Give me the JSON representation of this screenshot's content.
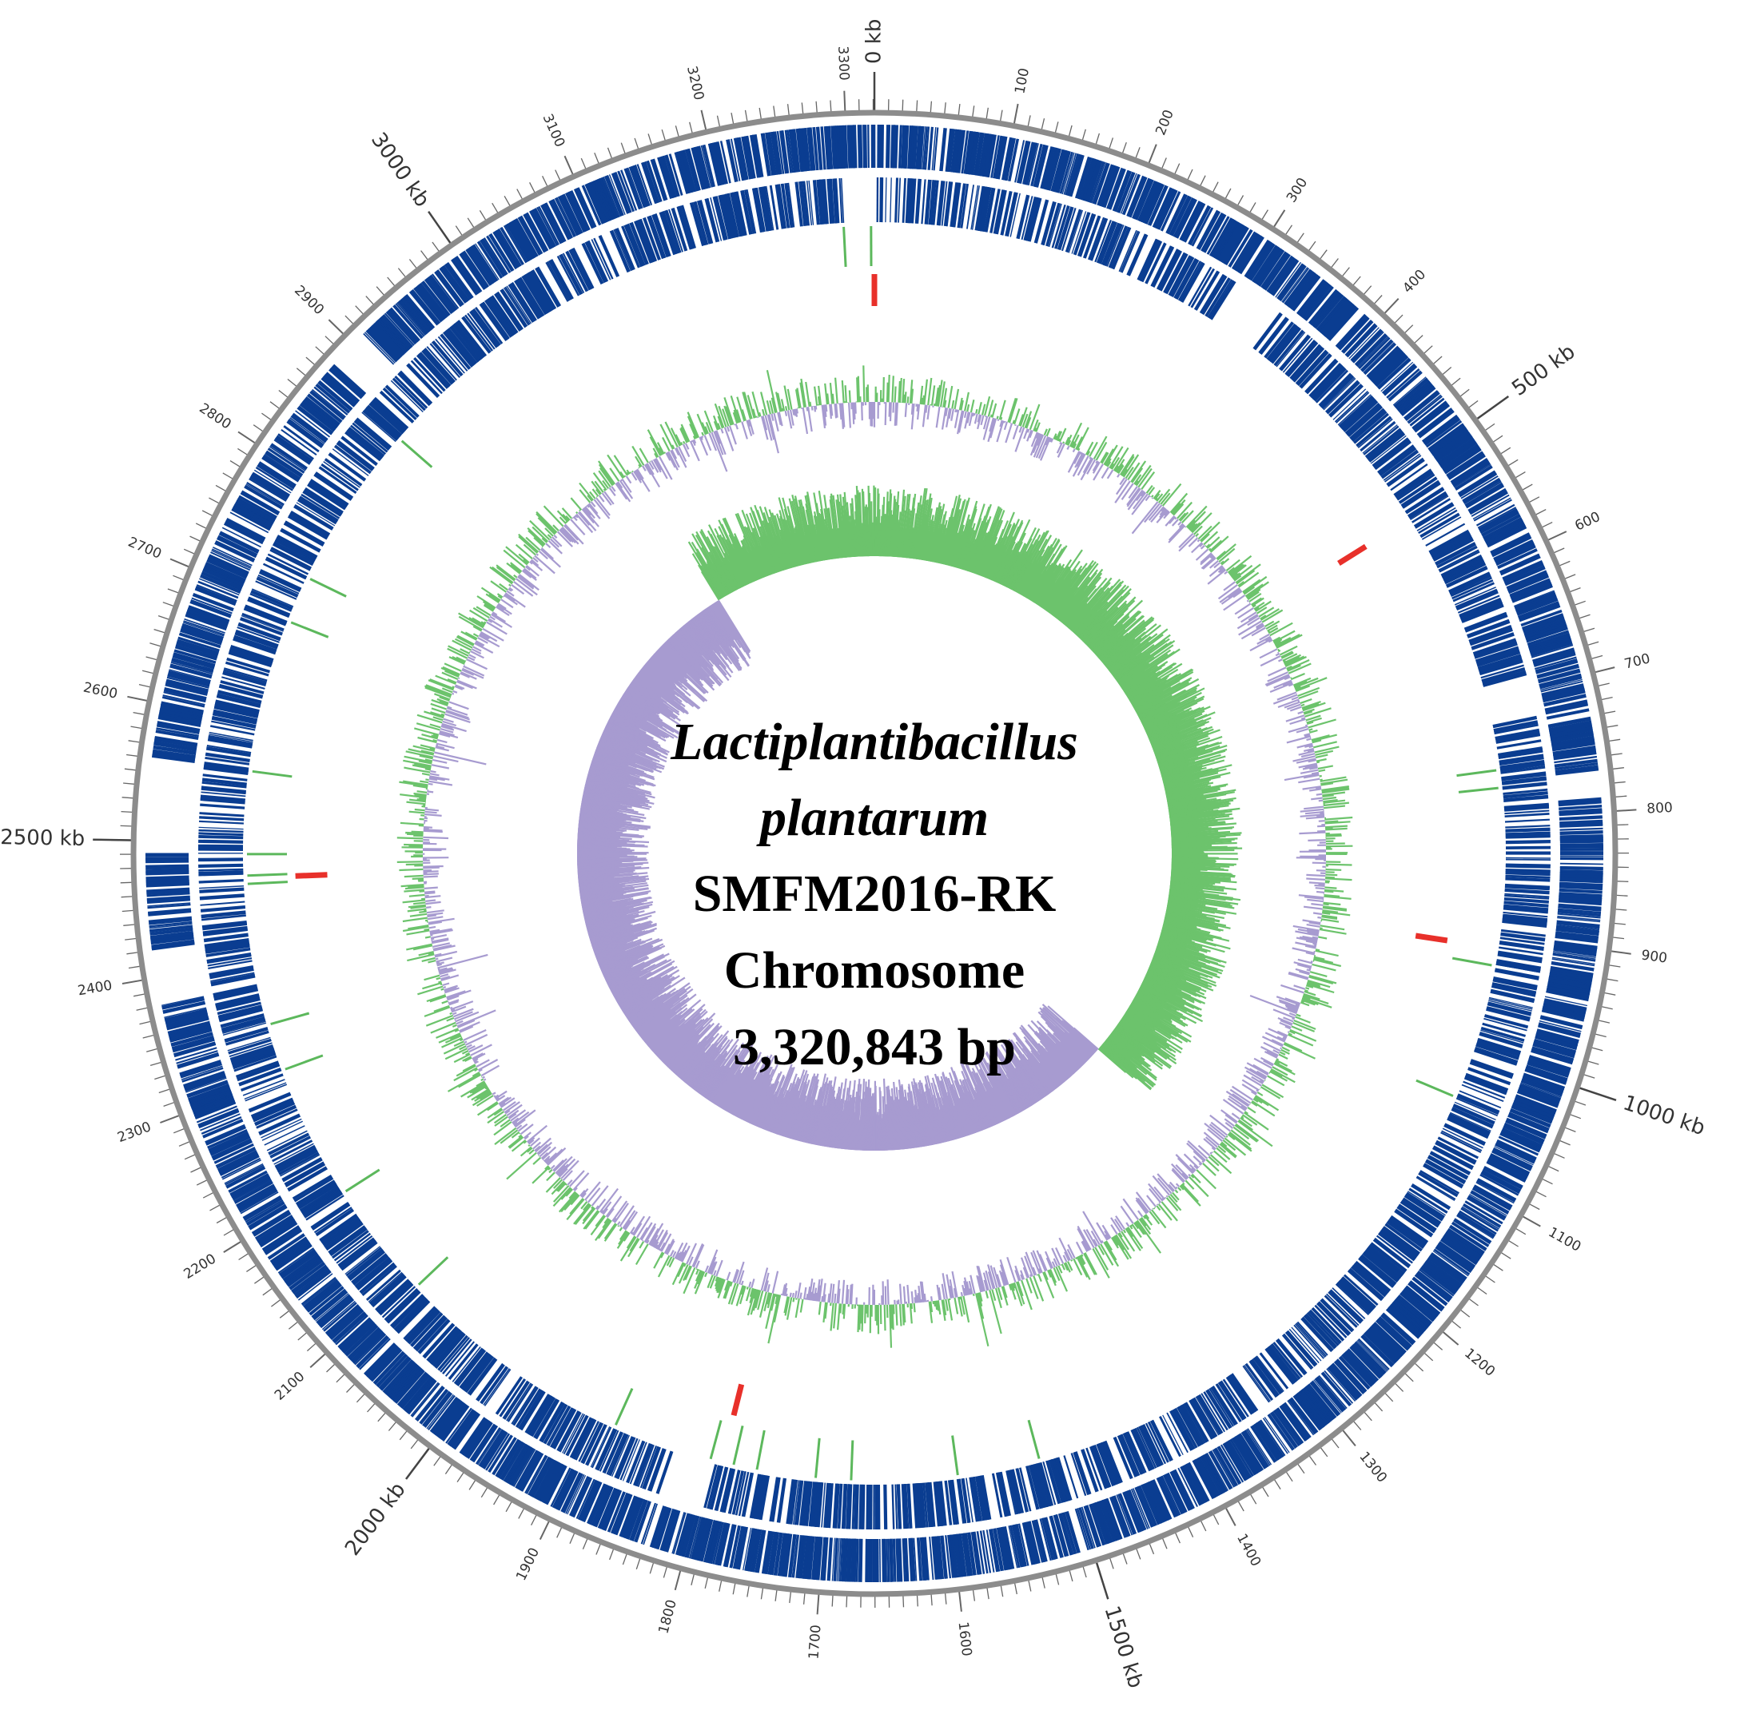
{
  "genome": {
    "organism_line1": "Lactiplantibacillus",
    "organism_line2": "plantarum",
    "strain": "SMFM2016-RK",
    "replicon": "Chromosome",
    "size_label": "3,320,843 bp",
    "length_kb": 3320.843
  },
  "scale": {
    "major_labels": [
      {
        "kb": 0,
        "text": "0 kb"
      },
      {
        "kb": 500,
        "text": "500 kb"
      },
      {
        "kb": 1000,
        "text": "1000 kb"
      },
      {
        "kb": 1500,
        "text": "1500 kb"
      },
      {
        "kb": 2000,
        "text": "2000 kb"
      },
      {
        "kb": 2500,
        "text": "2500 kb"
      },
      {
        "kb": 3000,
        "text": "3000 kb"
      }
    ],
    "minor_labels": [
      {
        "kb": 100,
        "text": "100"
      },
      {
        "kb": 200,
        "text": "200"
      },
      {
        "kb": 300,
        "text": "300"
      },
      {
        "kb": 400,
        "text": "400"
      },
      {
        "kb": 600,
        "text": "600"
      },
      {
        "kb": 700,
        "text": "700"
      },
      {
        "kb": 800,
        "text": "800"
      },
      {
        "kb": 900,
        "text": "900"
      },
      {
        "kb": 1100,
        "text": "1100"
      },
      {
        "kb": 1200,
        "text": "1200"
      },
      {
        "kb": 1300,
        "text": "1300"
      },
      {
        "kb": 1400,
        "text": "1400"
      },
      {
        "kb": 1600,
        "text": "1600"
      },
      {
        "kb": 1700,
        "text": "1700"
      },
      {
        "kb": 1800,
        "text": "1800"
      },
      {
        "kb": 1900,
        "text": "1900"
      },
      {
        "kb": 2100,
        "text": "2100"
      },
      {
        "kb": 2200,
        "text": "2200"
      },
      {
        "kb": 2300,
        "text": "2300"
      },
      {
        "kb": 2400,
        "text": "2400"
      },
      {
        "kb": 2600,
        "text": "2600"
      },
      {
        "kb": 2700,
        "text": "2700"
      },
      {
        "kb": 2800,
        "text": "2800"
      },
      {
        "kb": 2900,
        "text": "2900"
      },
      {
        "kb": 3100,
        "text": "3100"
      },
      {
        "kb": 3200,
        "text": "3200"
      },
      {
        "kb": 3300,
        "text": "3300"
      }
    ]
  },
  "colors": {
    "cds": "#0a3d91",
    "trna": "#5cb85c",
    "rrna": "#e8302a",
    "gc_positive": "#6cc36c",
    "gc_negative": "#a79bd0",
    "backbone": "#8c8c8c",
    "label": "#333333"
  },
  "features": {
    "rrna_kb": [
      0,
      535,
      910,
      2470,
      1790
    ],
    "trna_kb": [
      3318,
      3295,
      2870,
      2730,
      2690,
      2560,
      2490,
      2472,
      2465,
      2345,
      2305,
      2190,
      2090,
      1885,
      1800,
      1780,
      1760,
      1710,
      1680,
      1590,
      1520,
      760,
      775,
      925,
      1040
    ]
  },
  "chart_data": {
    "type": "circular_genome_map",
    "title": "Lactiplantibacillus plantarum SMFM2016-RK Chromosome 3,320,843 bp",
    "genome_length_bp": 3320843,
    "tracks": [
      {
        "name": "CDS forward strand",
        "color": "#0a3d91"
      },
      {
        "name": "CDS reverse strand",
        "color": "#0a3d91"
      },
      {
        "name": "tRNA",
        "color": "#5cb85c"
      },
      {
        "name": "rRNA",
        "color": "#e8302a"
      },
      {
        "name": "GC content",
        "colors": [
          "#6cc36c",
          "#a79bd0"
        ]
      },
      {
        "name": "GC skew",
        "colors": [
          "#6cc36c",
          "#a79bd0"
        ],
        "switch_kb": [
          1210,
          3030
        ]
      }
    ]
  }
}
